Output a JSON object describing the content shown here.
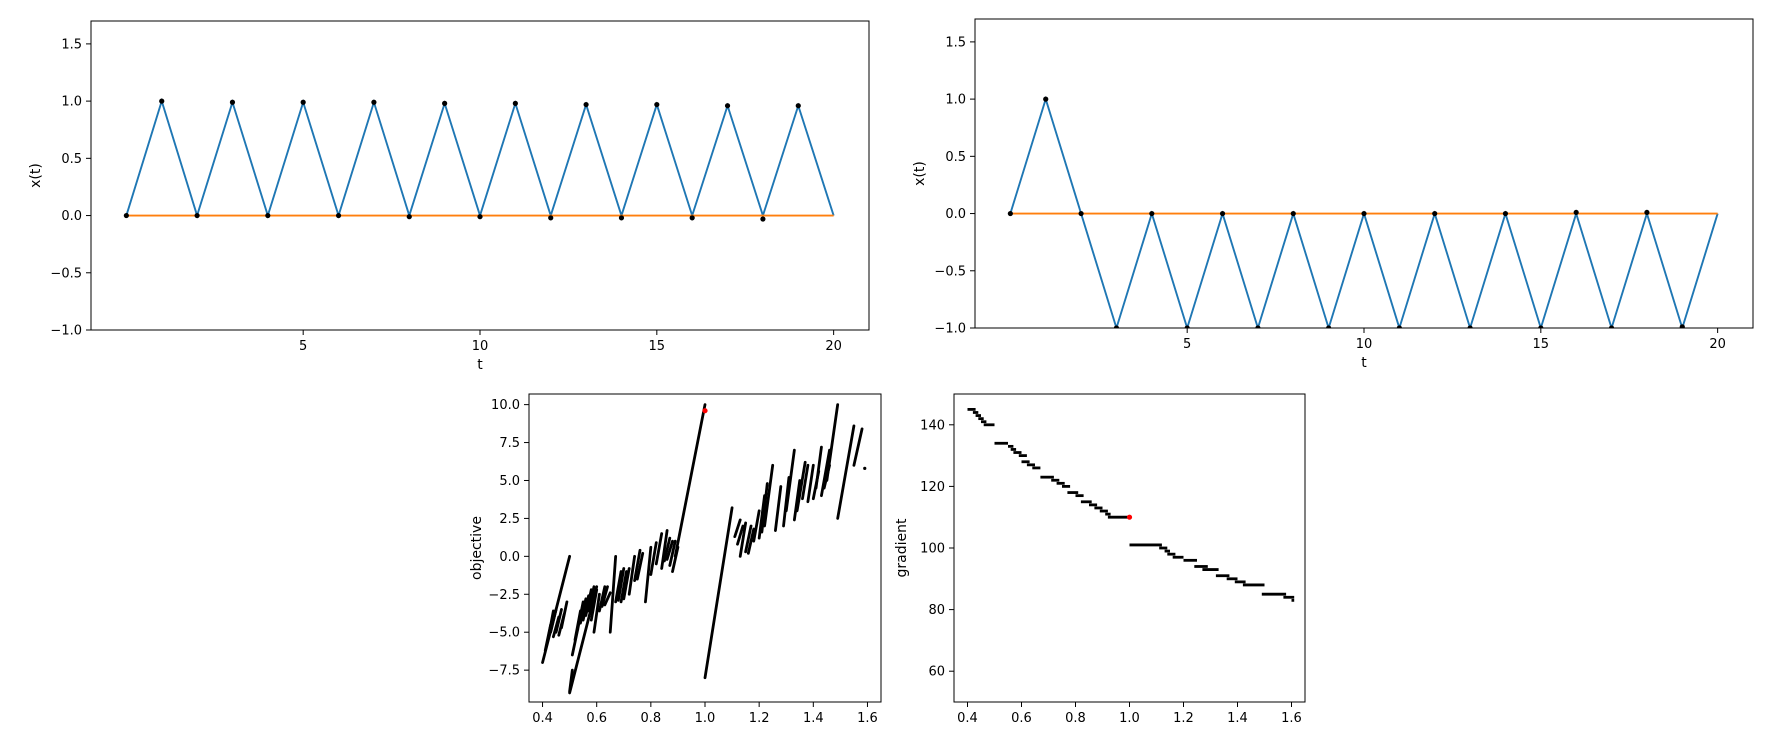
{
  "colors": {
    "line_blue": "#1f77b4",
    "line_orange": "#ff7f0e",
    "marker_black": "#000000",
    "highlight_red": "#ff0000"
  },
  "chart_data": [
    {
      "id": "top-left",
      "type": "line",
      "xlabel": "t",
      "ylabel": "x(t)",
      "xlim": [
        -1,
        21
      ],
      "ylim": [
        -1.0,
        1.7
      ],
      "xticks": [
        5,
        10,
        15,
        20
      ],
      "xtick_labels": [
        "5",
        "10",
        "15",
        "20"
      ],
      "yticks": [
        -1.0,
        -0.5,
        0.0,
        0.5,
        1.0,
        1.5
      ],
      "ytick_labels": [
        "−1.0",
        "−0.5",
        "0.0",
        "0.5",
        "1.0",
        "1.5"
      ],
      "grid": false,
      "series": [
        {
          "color": "line_blue",
          "x": [
            0,
            1,
            2,
            3,
            4,
            5,
            6,
            7,
            8,
            9,
            10,
            11,
            12,
            13,
            14,
            15,
            16,
            17,
            18,
            19,
            20
          ],
          "y": [
            0,
            1.0,
            0,
            0.99,
            0,
            0.99,
            0,
            0.99,
            0,
            0.98,
            0,
            0.98,
            0,
            0.97,
            0,
            0.97,
            0,
            0.96,
            0,
            0.96,
            0
          ]
        },
        {
          "color": "line_orange",
          "x": [
            0,
            20
          ],
          "y": [
            0,
            0
          ]
        }
      ],
      "markers": {
        "color": "marker_black",
        "x": [
          0,
          1,
          2,
          3,
          4,
          5,
          6,
          7,
          8,
          9,
          10,
          11,
          12,
          13,
          14,
          15,
          16,
          17,
          18,
          19
        ],
        "y": [
          0,
          1.0,
          0,
          0.99,
          0,
          0.99,
          0,
          0.99,
          -0.01,
          0.98,
          -0.01,
          0.98,
          -0.02,
          0.97,
          -0.02,
          0.97,
          -0.02,
          0.96,
          -0.03,
          0.96
        ]
      }
    },
    {
      "id": "top-right",
      "type": "line",
      "xlabel": "t",
      "ylabel": "x(t)",
      "xlim": [
        -1,
        21
      ],
      "ylim": [
        -1.0,
        1.7
      ],
      "xticks": [
        5,
        10,
        15,
        20
      ],
      "xtick_labels": [
        "5",
        "10",
        "15",
        "20"
      ],
      "yticks": [
        -1.0,
        -0.5,
        0.0,
        0.5,
        1.0,
        1.5
      ],
      "ytick_labels": [
        "−1.0",
        "−0.5",
        "0.0",
        "0.5",
        "1.0",
        "1.5"
      ],
      "grid": false,
      "series": [
        {
          "color": "line_blue",
          "x": [
            0,
            1,
            2,
            3,
            4,
            5,
            6,
            7,
            8,
            9,
            10,
            11,
            12,
            13,
            14,
            15,
            16,
            17,
            18,
            19,
            20
          ],
          "y": [
            0,
            1.0,
            0,
            -1.0,
            0,
            -1.0,
            0,
            -1.0,
            0,
            -1.0,
            0,
            -1.0,
            0,
            -1.0,
            0,
            -1.0,
            0,
            -1.0,
            0,
            -1.0,
            0
          ]
        },
        {
          "color": "line_orange",
          "x": [
            0,
            20
          ],
          "y": [
            0,
            0
          ]
        }
      ],
      "markers": {
        "color": "marker_black",
        "x": [
          0,
          1,
          2,
          3,
          4,
          5,
          6,
          7,
          8,
          9,
          10,
          11,
          12,
          13,
          14,
          15,
          16,
          17,
          18,
          19
        ],
        "y": [
          0,
          1.0,
          0,
          -1.0,
          0,
          -1.0,
          0,
          -1.0,
          0,
          -1.0,
          0,
          -1.0,
          0,
          -1.0,
          0,
          -1.0,
          0.01,
          -1.0,
          0.01,
          -0.99
        ]
      }
    },
    {
      "id": "bottom-left",
      "type": "scatter",
      "xlabel": "",
      "ylabel": "objective",
      "xlim": [
        0.35,
        1.65
      ],
      "ylim": [
        -9.6,
        10.7
      ],
      "xticks": [
        0.4,
        0.6,
        0.8,
        1.0,
        1.2,
        1.4,
        1.6
      ],
      "xtick_labels": [
        "0.4",
        "0.6",
        "0.8",
        "1.0",
        "1.2",
        "1.4",
        "1.6"
      ],
      "yticks": [
        -7.5,
        -5.0,
        -2.5,
        0.0,
        2.5,
        5.0,
        7.5,
        10.0
      ],
      "ytick_labels": [
        "−7.5",
        "−5.0",
        "−2.5",
        "0.0",
        "2.5",
        "5.0",
        "7.5",
        "10.0"
      ],
      "grid": false,
      "series": [
        {
          "color": "marker_black",
          "segments": [
            [
              0.4,
              -7.0,
              0.5,
              0.0
            ],
            [
              0.41,
              -6.2,
              0.43,
              -4.5
            ],
            [
              0.42,
              -5.5,
              0.44,
              -3.6
            ],
            [
              0.43,
              -5.0,
              0.45,
              -3.5
            ],
            [
              0.44,
              -5.3,
              0.46,
              -4.0
            ],
            [
              0.45,
              -5.0,
              0.47,
              -3.5
            ],
            [
              0.46,
              -5.2,
              0.48,
              -3.8
            ],
            [
              0.47,
              -4.7,
              0.49,
              -3.0
            ],
            [
              0.5,
              -8.9,
              0.51,
              -7.5
            ],
            [
              0.5,
              -9.0,
              0.6,
              -2.0
            ],
            [
              0.51,
              -6.5,
              0.53,
              -4.8
            ],
            [
              0.52,
              -5.5,
              0.54,
              -3.6
            ],
            [
              0.53,
              -4.8,
              0.55,
              -3.0
            ],
            [
              0.54,
              -4.4,
              0.56,
              -2.8
            ],
            [
              0.55,
              -4.2,
              0.57,
              -2.6
            ],
            [
              0.56,
              -3.9,
              0.58,
              -2.2
            ],
            [
              0.57,
              -3.6,
              0.59,
              -2.0
            ],
            [
              0.58,
              -4.2,
              0.6,
              -2.2
            ],
            [
              0.59,
              -5.0,
              0.61,
              -2.5
            ],
            [
              0.61,
              -3.6,
              0.63,
              -2.0
            ],
            [
              0.62,
              -3.3,
              0.64,
              -2.0
            ],
            [
              0.63,
              -3.2,
              0.65,
              -2.4
            ],
            [
              0.65,
              -5.0,
              0.67,
              0.0
            ],
            [
              0.67,
              -3.0,
              0.69,
              -1.0
            ],
            [
              0.68,
              -2.9,
              0.7,
              -0.8
            ],
            [
              0.69,
              -3.0,
              0.71,
              -1.0
            ],
            [
              0.7,
              -2.8,
              0.72,
              -0.8
            ],
            [
              0.72,
              -2.5,
              0.74,
              0.0
            ],
            [
              0.74,
              -1.6,
              0.76,
              0.4
            ],
            [
              0.75,
              -1.5,
              0.77,
              0.2
            ],
            [
              0.78,
              -3.0,
              0.8,
              0.6
            ],
            [
              0.8,
              -1.2,
              0.82,
              0.9
            ],
            [
              0.82,
              -0.5,
              0.84,
              1.5
            ],
            [
              0.84,
              -0.8,
              0.86,
              1.7
            ],
            [
              0.85,
              -0.3,
              0.87,
              1.2
            ],
            [
              0.86,
              -0.2,
              0.88,
              1.0
            ],
            [
              0.87,
              -0.6,
              0.89,
              1.0
            ],
            [
              0.88,
              -1.0,
              0.9,
              0.6
            ],
            [
              0.89,
              0.0,
              1.0,
              10.0
            ],
            [
              1.0,
              -8.0,
              1.1,
              3.2
            ],
            [
              1.11,
              1.3,
              1.13,
              2.4
            ],
            [
              1.12,
              0.8,
              1.14,
              2.0
            ],
            [
              1.13,
              0.0,
              1.15,
              2.2
            ],
            [
              1.15,
              0.3,
              1.17,
              2.0
            ],
            [
              1.16,
              0.2,
              1.18,
              1.8
            ],
            [
              1.18,
              1.0,
              1.2,
              3.0
            ],
            [
              1.2,
              1.2,
              1.22,
              4.0
            ],
            [
              1.21,
              1.6,
              1.23,
              4.8
            ],
            [
              1.22,
              2.0,
              1.25,
              6.0
            ],
            [
              1.26,
              1.7,
              1.28,
              4.6
            ],
            [
              1.29,
              2.0,
              1.31,
              5.2
            ],
            [
              1.3,
              3.0,
              1.33,
              7.0
            ],
            [
              1.33,
              2.4,
              1.35,
              5.0
            ],
            [
              1.34,
              3.0,
              1.37,
              6.2
            ],
            [
              1.36,
              3.8,
              1.38,
              6.0
            ],
            [
              1.38,
              3.6,
              1.4,
              6.0
            ],
            [
              1.4,
              3.8,
              1.42,
              5.6
            ],
            [
              1.41,
              4.5,
              1.43,
              7.2
            ],
            [
              1.43,
              4.0,
              1.46,
              7.0
            ],
            [
              1.44,
              4.5,
              1.46,
              6.0
            ],
            [
              1.45,
              5.0,
              1.49,
              10.0
            ],
            [
              1.49,
              2.5,
              1.55,
              8.6
            ],
            [
              1.55,
              6.0,
              1.58,
              8.4
            ]
          ],
          "points": [
            [
              1.59,
              5.8
            ]
          ]
        }
      ],
      "highlight": {
        "color": "highlight_red",
        "x": 1.0,
        "y": 9.6
      }
    },
    {
      "id": "bottom-right",
      "type": "scatter",
      "xlabel": "",
      "ylabel": "gradient",
      "xlim": [
        0.35,
        1.65
      ],
      "ylim": [
        50,
        150
      ],
      "xticks": [
        0.4,
        0.6,
        0.8,
        1.0,
        1.2,
        1.4,
        1.6
      ],
      "xtick_labels": [
        "0.4",
        "0.6",
        "0.8",
        "1.0",
        "1.2",
        "1.4",
        "1.6"
      ],
      "yticks": [
        60,
        80,
        100,
        120,
        140
      ],
      "ytick_labels": [
        "60",
        "80",
        "100",
        "120",
        "140"
      ],
      "grid": false,
      "series": [
        {
          "color": "marker_black",
          "steps": [
            [
              0.4,
              0.43,
              145
            ],
            [
              0.42,
              0.44,
              144
            ],
            [
              0.43,
              0.45,
              143
            ],
            [
              0.44,
              0.46,
              142
            ],
            [
              0.45,
              0.47,
              141
            ],
            [
              0.46,
              0.5,
              140
            ],
            [
              0.5,
              0.55,
              134
            ],
            [
              0.55,
              0.57,
              133
            ],
            [
              0.56,
              0.58,
              132
            ],
            [
              0.57,
              0.6,
              131
            ],
            [
              0.59,
              0.62,
              130
            ],
            [
              0.6,
              0.63,
              128
            ],
            [
              0.62,
              0.65,
              127
            ],
            [
              0.64,
              0.67,
              126
            ],
            [
              0.67,
              0.72,
              123
            ],
            [
              0.71,
              0.74,
              122
            ],
            [
              0.73,
              0.76,
              121
            ],
            [
              0.75,
              0.78,
              120
            ],
            [
              0.77,
              0.81,
              118
            ],
            [
              0.8,
              0.83,
              117
            ],
            [
              0.82,
              0.86,
              115
            ],
            [
              0.85,
              0.88,
              114
            ],
            [
              0.87,
              0.9,
              113
            ],
            [
              0.89,
              0.92,
              112
            ],
            [
              0.91,
              0.93,
              111
            ],
            [
              0.92,
              1.0,
              110
            ],
            [
              1.0,
              1.12,
              101
            ],
            [
              1.11,
              1.14,
              100
            ],
            [
              1.13,
              1.15,
              99
            ],
            [
              1.14,
              1.17,
              98
            ],
            [
              1.16,
              1.2,
              97
            ],
            [
              1.2,
              1.25,
              96
            ],
            [
              1.24,
              1.29,
              94
            ],
            [
              1.27,
              1.33,
              93
            ],
            [
              1.32,
              1.37,
              91
            ],
            [
              1.36,
              1.4,
              90
            ],
            [
              1.39,
              1.43,
              89
            ],
            [
              1.42,
              1.5,
              88
            ],
            [
              1.49,
              1.58,
              85
            ],
            [
              1.57,
              1.61,
              84
            ],
            [
              1.6,
              1.61,
              83
            ]
          ]
        }
      ],
      "highlight": {
        "color": "highlight_red",
        "x": 1.0,
        "y": 110
      }
    }
  ]
}
